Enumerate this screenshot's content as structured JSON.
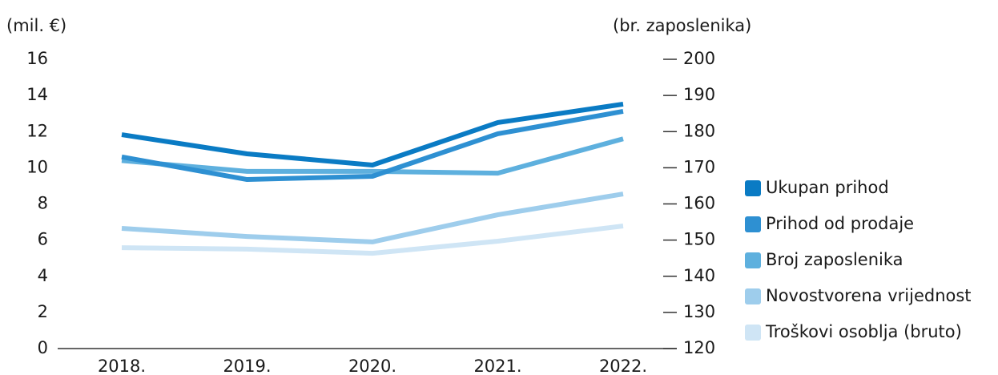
{
  "chart_data": {
    "type": "line",
    "y_label": "(mil. €)",
    "y2_label": "(br. zaposlenika)",
    "categories": [
      "2018.",
      "2019.",
      "2020.",
      "2021.",
      "2022."
    ],
    "ylim": [
      0,
      16
    ],
    "yticks": [
      0,
      2,
      4,
      6,
      8,
      10,
      12,
      14,
      16
    ],
    "y2lim": [
      120,
      200
    ],
    "y2ticks": [
      120,
      130,
      140,
      150,
      160,
      170,
      180,
      190,
      200
    ],
    "legend": "right",
    "series": [
      {
        "name": "Ukupan prihod",
        "color": "#0a7bc4",
        "values": [
          11.83,
          10.77,
          10.15,
          12.5,
          13.52
        ]
      },
      {
        "name": "Prihod od prodaje",
        "color": "#2e90d2",
        "values": [
          10.6,
          9.35,
          9.53,
          11.88,
          13.12
        ]
      },
      {
        "name": "Broj zaposlenika",
        "color": "#5eb0de",
        "axis": "y2",
        "values": [
          172,
          169,
          169,
          168.5,
          178
        ]
      },
      {
        "name": "Novostvorena vrijednost",
        "color": "#9ecdec",
        "values": [
          6.65,
          6.2,
          5.9,
          7.4,
          8.55
        ]
      },
      {
        "name": "Troškovi osoblja (bruto)",
        "color": "#cfe5f5",
        "values": [
          5.58,
          5.5,
          5.27,
          5.94,
          6.78
        ]
      }
    ]
  }
}
